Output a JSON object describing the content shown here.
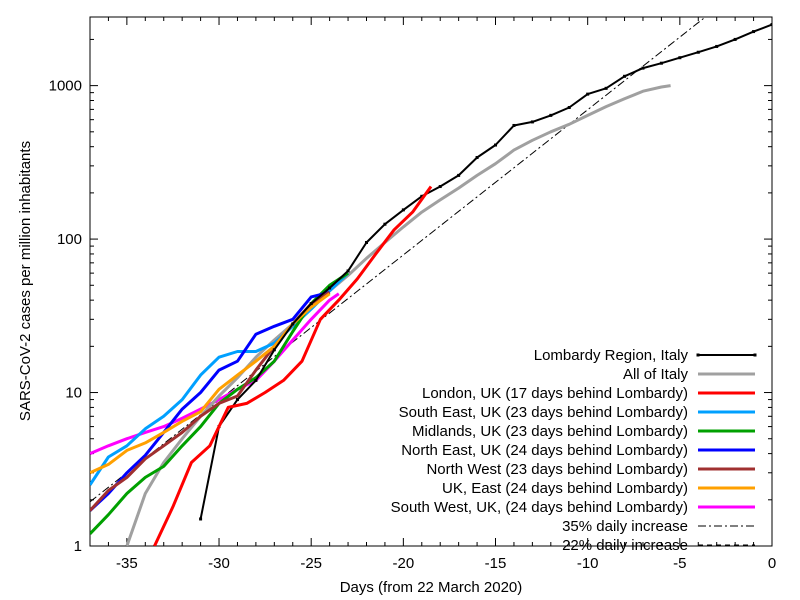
{
  "chart_data": {
    "type": "line",
    "title": "",
    "xlabel": "Days (from 22 March 2020)",
    "ylabel": "SARS-CoV-2 cases per million inhabitants",
    "xlim": [
      -37,
      0
    ],
    "ylim": [
      1,
      2800
    ],
    "y_scale": "log",
    "grid": false,
    "legend_position": "bottom-right",
    "x_ticks": [
      -35,
      -30,
      -25,
      -20,
      -15,
      -10,
      -5,
      0
    ],
    "x_tick_labels": [
      "-35",
      "-30",
      "-25",
      "-20",
      "-15",
      "-10",
      "-5",
      "0"
    ],
    "y_ticks": [
      1,
      10,
      100,
      1000
    ],
    "y_tick_labels": [
      "1",
      "10",
      "100",
      "1000"
    ],
    "series": [
      {
        "name": "Lombardy Region, Italy",
        "color": "#000000",
        "style": "solid-points",
        "x": [
          -31,
          -30,
          -29,
          -28,
          -27,
          -26,
          -25,
          -24,
          -23,
          -22,
          -21,
          -20,
          -19,
          -18,
          -17,
          -16,
          -15,
          -14,
          -13,
          -12,
          -11,
          -10,
          -9,
          -8,
          -7,
          -6,
          -5,
          -4,
          -3,
          -2,
          -1,
          0
        ],
        "y": [
          1.5,
          6,
          9,
          12,
          19,
          28,
          38,
          48,
          62,
          95,
          125,
          155,
          190,
          220,
          260,
          340,
          410,
          550,
          580,
          640,
          720,
          880,
          960,
          1150,
          1300,
          1400,
          1520,
          1650,
          1800,
          2000,
          2250,
          2500
        ]
      },
      {
        "name": "All of Italy",
        "color": "#a0a0a0",
        "style": "solid",
        "x": [
          -35,
          -34,
          -33,
          -32,
          -31,
          -30,
          -29,
          -28,
          -27,
          -26,
          -25,
          -24,
          -23,
          -22,
          -21,
          -20,
          -19,
          -18,
          -17,
          -16,
          -15,
          -14,
          -13,
          -12,
          -11,
          -10,
          -9,
          -8,
          -7,
          -6,
          -5.5
        ],
        "y": [
          1,
          2.2,
          3.5,
          5,
          7,
          9.5,
          12.5,
          17,
          22,
          28,
          36,
          46,
          58,
          75,
          95,
          120,
          150,
          180,
          215,
          260,
          310,
          380,
          440,
          500,
          560,
          640,
          730,
          820,
          920,
          980,
          1000
        ]
      },
      {
        "name": "London, UK (17 days behind Lombardy)",
        "color": "#ff0000",
        "style": "solid",
        "x": [
          -33.5,
          -32.5,
          -31.5,
          -30.5,
          -29.5,
          -28.5,
          -27.5,
          -26.5,
          -25.5,
          -24.5,
          -23.5,
          -22.5,
          -21.5,
          -20.5,
          -19.5,
          -18.5
        ],
        "y": [
          1,
          1.8,
          3.5,
          4.5,
          8,
          8.5,
          10,
          12,
          16,
          30,
          40,
          55,
          80,
          115,
          150,
          220
        ]
      },
      {
        "name": "South East, UK (23 days behind Lombardy)",
        "color": "#00a0ff",
        "style": "solid",
        "x": [
          -37,
          -36,
          -35,
          -34,
          -33,
          -32,
          -31,
          -30,
          -29,
          -28,
          -27,
          -26,
          -25,
          -24,
          -23
        ],
        "y": [
          2.5,
          3.8,
          4.5,
          5.8,
          7,
          9,
          13,
          17,
          18.5,
          18.5,
          21,
          27,
          35,
          46,
          60
        ]
      },
      {
        "name": "Midlands, UK (23 days behind Lombardy)",
        "color": "#00a000",
        "style": "solid",
        "x": [
          -37,
          -36,
          -35,
          -34,
          -33,
          -32,
          -31,
          -30,
          -29,
          -28,
          -27,
          -26,
          -25,
          -24,
          -23
        ],
        "y": [
          1.2,
          1.6,
          2.2,
          2.8,
          3.3,
          4.5,
          6,
          8.5,
          10.5,
          12.5,
          16,
          25,
          38,
          50,
          60
        ]
      },
      {
        "name": "North East, UK (24 days behind Lombardy)",
        "color": "#0000ff",
        "style": "solid",
        "x": [
          -37,
          -36,
          -35,
          -34,
          -33,
          -32,
          -31,
          -30,
          -29,
          -28,
          -27,
          -26,
          -25,
          -24
        ],
        "y": [
          1.7,
          2.2,
          3,
          3.9,
          5.5,
          7.8,
          10,
          14,
          16,
          24,
          27,
          30,
          42,
          45
        ]
      },
      {
        "name": "North West (23 days behind Lombardy)",
        "color": "#a03030",
        "style": "solid",
        "x": [
          -37,
          -36,
          -35,
          -34,
          -33,
          -32,
          -31,
          -30,
          -29,
          -28,
          -27,
          -26,
          -25,
          -24
        ],
        "y": [
          1.7,
          2.3,
          2.8,
          3.7,
          4.5,
          5.5,
          7,
          8.5,
          9.5,
          14,
          20,
          28,
          38,
          45
        ]
      },
      {
        "name": "UK, East (24 days behind Lombardy)",
        "color": "#ffa000",
        "style": "solid",
        "x": [
          -37,
          -36,
          -35,
          -34,
          -33,
          -32,
          -31,
          -30,
          -29,
          -28,
          -27,
          -26,
          -25,
          -24
        ],
        "y": [
          3,
          3.4,
          4.2,
          4.7,
          5.5,
          6.5,
          7.5,
          10.5,
          13,
          16,
          20,
          28,
          36,
          44
        ]
      },
      {
        "name": "South West, UK, (24 days behind Lombardy)",
        "color": "#ff00ff",
        "style": "solid",
        "x": [
          -37,
          -36,
          -35,
          -34,
          -33,
          -32,
          -31,
          -30,
          -29,
          -28,
          -27,
          -26,
          -25,
          -24,
          -23.5
        ],
        "y": [
          4,
          4.5,
          5,
          5.5,
          6,
          6.8,
          7.8,
          9,
          10.5,
          12,
          16,
          22,
          30,
          40,
          44
        ]
      },
      {
        "name": "35% daily increase",
        "color": "#000000",
        "style": "dashdot",
        "x": [
          -37,
          -3.3
        ],
        "y": [
          1.94,
          3000
        ]
      },
      {
        "name": "22% daily increase",
        "color": "#000000",
        "style": "dashed",
        "x": [
          -37,
          0
        ],
        "y": [
          3.55,
          2800
        ]
      }
    ]
  }
}
